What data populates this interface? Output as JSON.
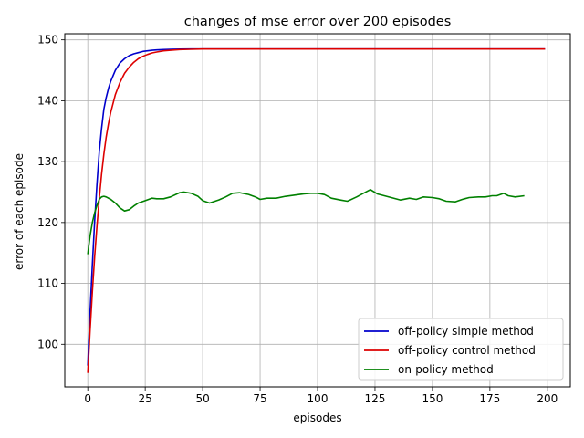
{
  "chart_data": {
    "type": "line",
    "title": "changes of mse error over 200 episodes",
    "xlabel": "episodes",
    "ylabel": "error of each episode",
    "xlim": [
      -10,
      210
    ],
    "ylim": [
      93,
      151
    ],
    "xticks": [
      0,
      25,
      50,
      75,
      100,
      125,
      150,
      175,
      200
    ],
    "yticks": [
      100,
      110,
      120,
      130,
      140,
      150
    ],
    "grid": true,
    "legend": "lower-right",
    "series": [
      {
        "name": "off-policy simple method",
        "color": "#0000cc",
        "x": [
          0,
          1,
          2,
          3,
          4,
          5,
          6,
          7,
          8,
          9,
          10,
          12,
          14,
          16,
          18,
          20,
          22,
          24,
          26,
          28,
          30,
          33,
          36,
          40,
          45,
          50,
          60,
          80,
          100,
          130,
          160,
          199
        ],
        "y": [
          96.5,
          105.3,
          113.1,
          120.2,
          126.3,
          131.6,
          135.4,
          138.6,
          140.5,
          142.0,
          143.2,
          145.0,
          146.2,
          146.9,
          147.4,
          147.7,
          147.9,
          148.1,
          148.2,
          148.3,
          148.35,
          148.4,
          148.45,
          148.48,
          148.5,
          148.5,
          148.5,
          148.5,
          148.5,
          148.5,
          148.5,
          148.5
        ]
      },
      {
        "name": "off-policy control method",
        "color": "#dd0000",
        "x": [
          0,
          1,
          2,
          3,
          4,
          5,
          6,
          7,
          8,
          9,
          10,
          12,
          14,
          16,
          18,
          20,
          22,
          24,
          26,
          28,
          30,
          33,
          36,
          40,
          45,
          50,
          60,
          80,
          100,
          130,
          160,
          199
        ],
        "y": [
          95.3,
          102.2,
          108.6,
          114.4,
          119.4,
          123.9,
          127.9,
          131.2,
          134.0,
          136.2,
          138.1,
          141.0,
          143.0,
          144.5,
          145.5,
          146.3,
          146.9,
          147.3,
          147.6,
          147.85,
          148.0,
          148.2,
          148.3,
          148.4,
          148.45,
          148.5,
          148.5,
          148.5,
          148.5,
          148.5,
          148.5,
          148.5
        ]
      },
      {
        "name": "on-policy method",
        "color": "#008000",
        "x": [
          0,
          1,
          2,
          3,
          4,
          5,
          6,
          7,
          8,
          10,
          12,
          14,
          16,
          18,
          20,
          22,
          25,
          28,
          30,
          33,
          36,
          40,
          42,
          45,
          48,
          50,
          53,
          57,
          60,
          63,
          66,
          70,
          73,
          75,
          78,
          82,
          86,
          90,
          94,
          97,
          100,
          103,
          106,
          110,
          113,
          117,
          121,
          123,
          126,
          130,
          133,
          136,
          140,
          143,
          146,
          150,
          153,
          156,
          160,
          163,
          166,
          170,
          173,
          176,
          178,
          181,
          183,
          186,
          190
        ],
        "y": [
          114.8,
          117.8,
          120.0,
          121.6,
          122.8,
          123.8,
          124.2,
          124.3,
          124.2,
          123.8,
          123.2,
          122.4,
          121.9,
          122.1,
          122.7,
          123.2,
          123.6,
          124.0,
          123.9,
          123.9,
          124.2,
          124.9,
          125.0,
          124.8,
          124.3,
          123.6,
          123.2,
          123.7,
          124.2,
          124.8,
          124.9,
          124.6,
          124.2,
          123.8,
          124.0,
          124.0,
          124.3,
          124.5,
          124.7,
          124.8,
          124.8,
          124.6,
          124.0,
          123.7,
          123.5,
          124.2,
          125.0,
          125.4,
          124.7,
          124.3,
          124.0,
          123.7,
          124.0,
          123.8,
          124.2,
          124.1,
          123.9,
          123.5,
          123.4,
          123.8,
          124.1,
          124.2,
          124.2,
          124.4,
          124.4,
          124.8,
          124.4,
          124.2,
          124.4
        ]
      }
    ]
  }
}
